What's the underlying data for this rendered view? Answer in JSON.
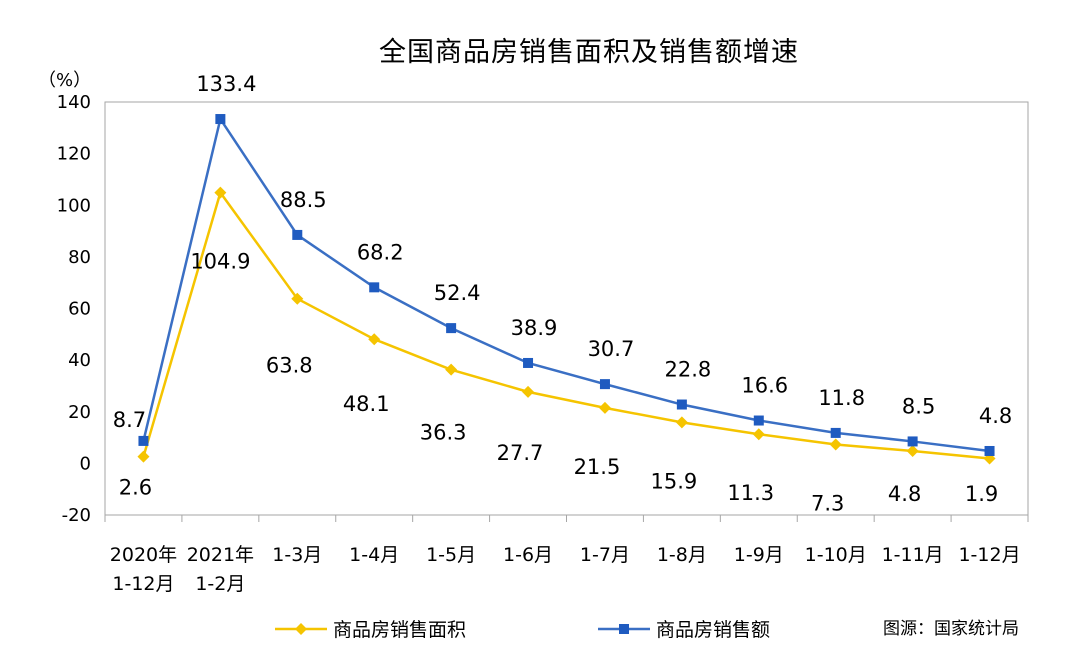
{
  "chart_data": {
    "type": "line",
    "title": "全国商品房销售面积及销售额增速",
    "ylabel": "（%）",
    "ylim": [
      -20,
      140
    ],
    "yticks": [
      -20,
      0,
      20,
      40,
      60,
      80,
      100,
      120,
      140
    ],
    "categories": [
      [
        "2020年",
        "1-12月"
      ],
      [
        "2021年",
        "1-2月"
      ],
      [
        "1-3月"
      ],
      [
        "1-4月"
      ],
      [
        "1-5月"
      ],
      [
        "1-6月"
      ],
      [
        "1-7月"
      ],
      [
        "1-8月"
      ],
      [
        "1-9月"
      ],
      [
        "1-10月"
      ],
      [
        "1-11月"
      ],
      [
        "1-12月"
      ]
    ],
    "series": [
      {
        "name": "商品房销售面积",
        "color": "#F5C400",
        "marker": "diamond",
        "values": [
          2.6,
          104.9,
          63.8,
          48.1,
          36.3,
          27.7,
          21.5,
          15.9,
          11.3,
          7.3,
          4.8,
          1.9
        ]
      },
      {
        "name": "商品房销售额",
        "color": "#3A6FC4",
        "marker": "square",
        "marker_color": "#1F5BC0",
        "values": [
          8.7,
          133.4,
          88.5,
          68.2,
          52.4,
          38.9,
          30.7,
          22.8,
          16.6,
          11.8,
          8.5,
          4.8
        ]
      }
    ],
    "grid": false,
    "legend_position": "bottom-center"
  },
  "source": "图源：国家统计局"
}
